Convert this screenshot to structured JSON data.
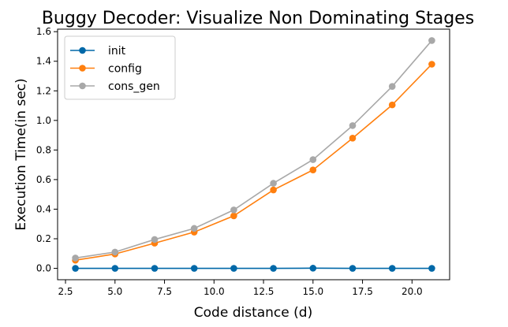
{
  "chart_data": {
    "type": "line",
    "title": "Buggy Decoder: Visualize Non Dominating Stages",
    "xlabel": "Code distance (d)",
    "ylabel": "Execution Time(in sec)",
    "x": [
      3,
      5,
      7,
      9,
      11,
      13,
      15,
      17,
      19,
      21
    ],
    "xlim": [
      2.1,
      21.9
    ],
    "ylim": [
      -0.077,
      1.617
    ],
    "xticks": [
      2.5,
      5.0,
      7.5,
      10.0,
      12.5,
      15.0,
      17.5,
      20.0
    ],
    "xtick_labels": [
      "2.5",
      "5.0",
      "7.5",
      "10.0",
      "12.5",
      "15.0",
      "17.5",
      "20.0"
    ],
    "yticks": [
      0.0,
      0.2,
      0.4,
      0.6,
      0.8,
      1.0,
      1.2,
      1.4,
      1.6
    ],
    "ytick_labels": [
      "0.0",
      "0.2",
      "0.4",
      "0.6",
      "0.8",
      "1.0",
      "1.2",
      "1.4",
      "1.6"
    ],
    "grid": false,
    "legend_position": "top-left",
    "series": [
      {
        "name": "init",
        "color": "#0068a8",
        "values": [
          0.0,
          0.0,
          0.0,
          0.0,
          0.0,
          0.0,
          0.001,
          0.0,
          0.0,
          0.0
        ]
      },
      {
        "name": "config",
        "color": "#ff7f0e",
        "values": [
          0.055,
          0.097,
          0.17,
          0.245,
          0.355,
          0.53,
          0.665,
          0.88,
          1.105,
          1.38
        ]
      },
      {
        "name": "cons_gen",
        "color": "#a8a8a8",
        "values": [
          0.07,
          0.11,
          0.195,
          0.27,
          0.395,
          0.575,
          0.735,
          0.965,
          1.23,
          1.54
        ]
      }
    ]
  }
}
